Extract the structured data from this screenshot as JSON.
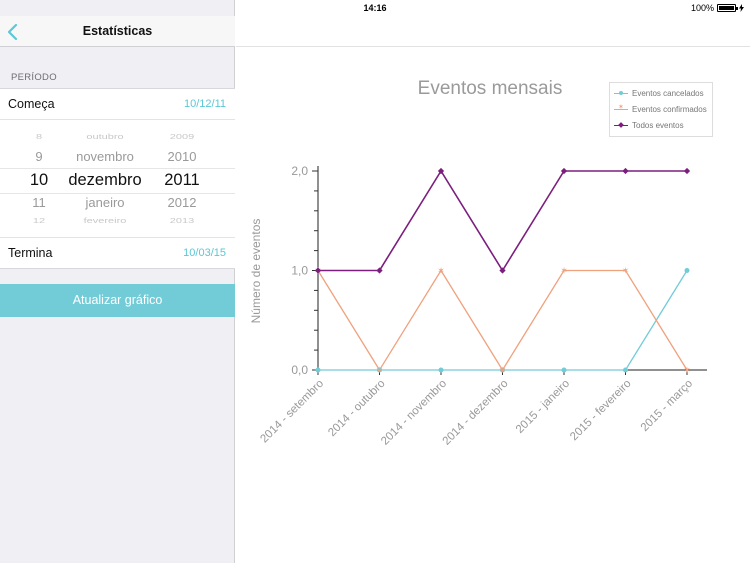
{
  "status_bar": {
    "device": "iPad",
    "time": "14:16",
    "battery": "100%"
  },
  "navbar": {
    "title": "Estatísticas"
  },
  "sidebar": {
    "section_header": "PERÍODO",
    "begin": {
      "label": "Começa",
      "value": "10/12/11"
    },
    "end": {
      "label": "Termina",
      "value": "10/03/15"
    },
    "picker": {
      "days": [
        "8",
        "9",
        "10",
        "11",
        "12"
      ],
      "months": [
        "outubro",
        "novembro",
        "dezembro",
        "janeiro",
        "fevereiro"
      ],
      "years": [
        "2009",
        "2010",
        "2011",
        "2012",
        "2013"
      ],
      "selected": {
        "day": "10",
        "month": "dezembro",
        "year": "2011"
      }
    },
    "update_button": "Atualizar gráfico"
  },
  "colors": {
    "accent": "#5cc7d6",
    "button": "#72ccd8",
    "cancelled": "#72ccd8",
    "confirmed": "#f0a17e",
    "all": "#7b1e7e"
  },
  "chart_data": {
    "type": "line",
    "title": "Eventos mensais",
    "xlabel": "",
    "ylabel": "Número de eventos",
    "ylim": [
      0,
      2
    ],
    "y_ticks": [
      "0,0",
      "1,0",
      "2,0"
    ],
    "categories": [
      "2014 - setembro",
      "2014 - outubro",
      "2014 - novembro",
      "2014 - dezembro",
      "2015 - janeiro",
      "2015 - fevereiro",
      "2015 - março"
    ],
    "series": [
      {
        "name": "Eventos cancelados",
        "color": "#72ccd8",
        "marker": "circle",
        "values": [
          0,
          0,
          0,
          0,
          0,
          0,
          1
        ]
      },
      {
        "name": "Eventos confirmados",
        "color": "#f0a17e",
        "marker": "star",
        "values": [
          1,
          0,
          1,
          0,
          1,
          1,
          0
        ]
      },
      {
        "name": "Todos eventos",
        "color": "#7b1e7e",
        "marker": "diamond",
        "values": [
          1,
          1,
          2,
          1,
          2,
          2,
          2
        ]
      }
    ],
    "legend": "top-right"
  }
}
